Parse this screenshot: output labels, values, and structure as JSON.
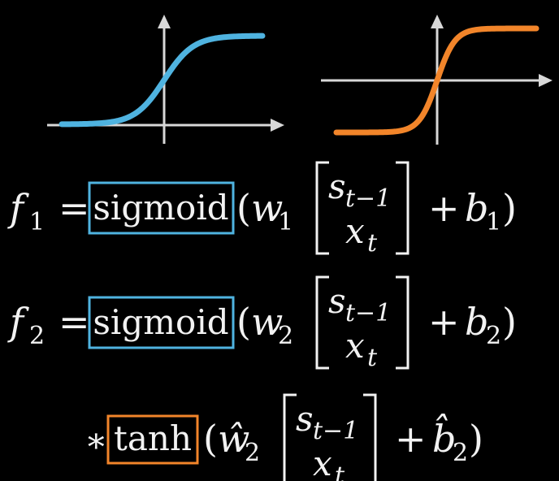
{
  "colors": {
    "background": "#000000",
    "text": "#f2f2f2",
    "axis": "#d8d8d8",
    "sigmoid": "#4fb3e0",
    "tanh": "#f2852a"
  },
  "plots": [
    {
      "name": "sigmoid-plot",
      "curve_color": "#4fb3e0"
    },
    {
      "name": "tanh-plot",
      "curve_color": "#f2852a"
    }
  ],
  "eq1": {
    "lhs_var": "f",
    "lhs_sub": "1",
    "equals": "=",
    "func": "sigmoid",
    "open_paren": "(",
    "w_var": "w",
    "w_sub": "1",
    "vec_top_var": "s",
    "vec_top_sub": "t−1",
    "vec_bottom_var": "x",
    "vec_bottom_sub": "t",
    "plus": "+",
    "b_var": "b",
    "b_sub": "1",
    "close_paren": ")"
  },
  "eq2": {
    "lhs_var": "f",
    "lhs_sub": "2",
    "equals": "=",
    "func": "sigmoid",
    "open_paren": "(",
    "w_var": "w",
    "w_sub": "2",
    "vec_top_var": "s",
    "vec_top_sub": "t−1",
    "vec_bottom_var": "x",
    "vec_bottom_sub": "t",
    "plus": "+",
    "b_var": "b",
    "b_sub": "2",
    "close_paren": ")"
  },
  "eq3": {
    "star": "∗",
    "func": "tanh",
    "open_paren": "(",
    "w_var": "ŵ",
    "w_sub": "2",
    "vec_top_var": "s",
    "vec_top_sub": "t−1",
    "vec_bottom_var": "x",
    "vec_bottom_sub": "t",
    "plus": "+",
    "b_var": "b̂",
    "b_sub": "2",
    "close_paren": ")"
  }
}
